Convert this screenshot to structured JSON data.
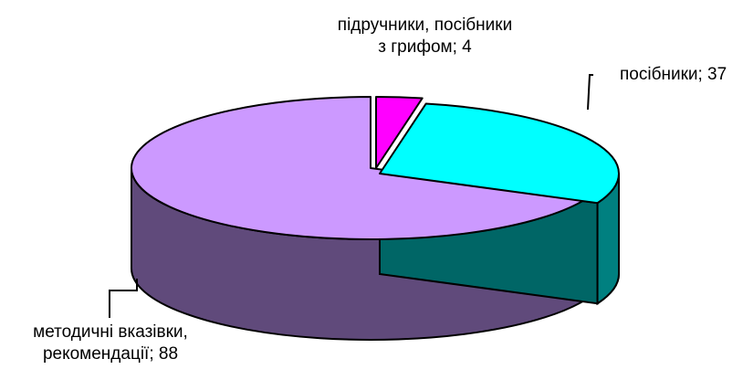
{
  "chart_data": {
    "type": "pie",
    "style": "3d-exploded",
    "slices": [
      {
        "label_line1": "підручники, посібники",
        "label_line2": "з грифом; 4",
        "value": 4,
        "color": "#ff00ff",
        "side_color": "#800080"
      },
      {
        "label_line1": "посібники; 37",
        "label_line2": "",
        "value": 37,
        "color": "#00ffff",
        "side_color": "#008080"
      },
      {
        "label_line1": "методичні вказівки,",
        "label_line2": "рекомендації; 88",
        "value": 88,
        "color": "#cc99ff",
        "side_color": "#604a7b"
      }
    ]
  }
}
